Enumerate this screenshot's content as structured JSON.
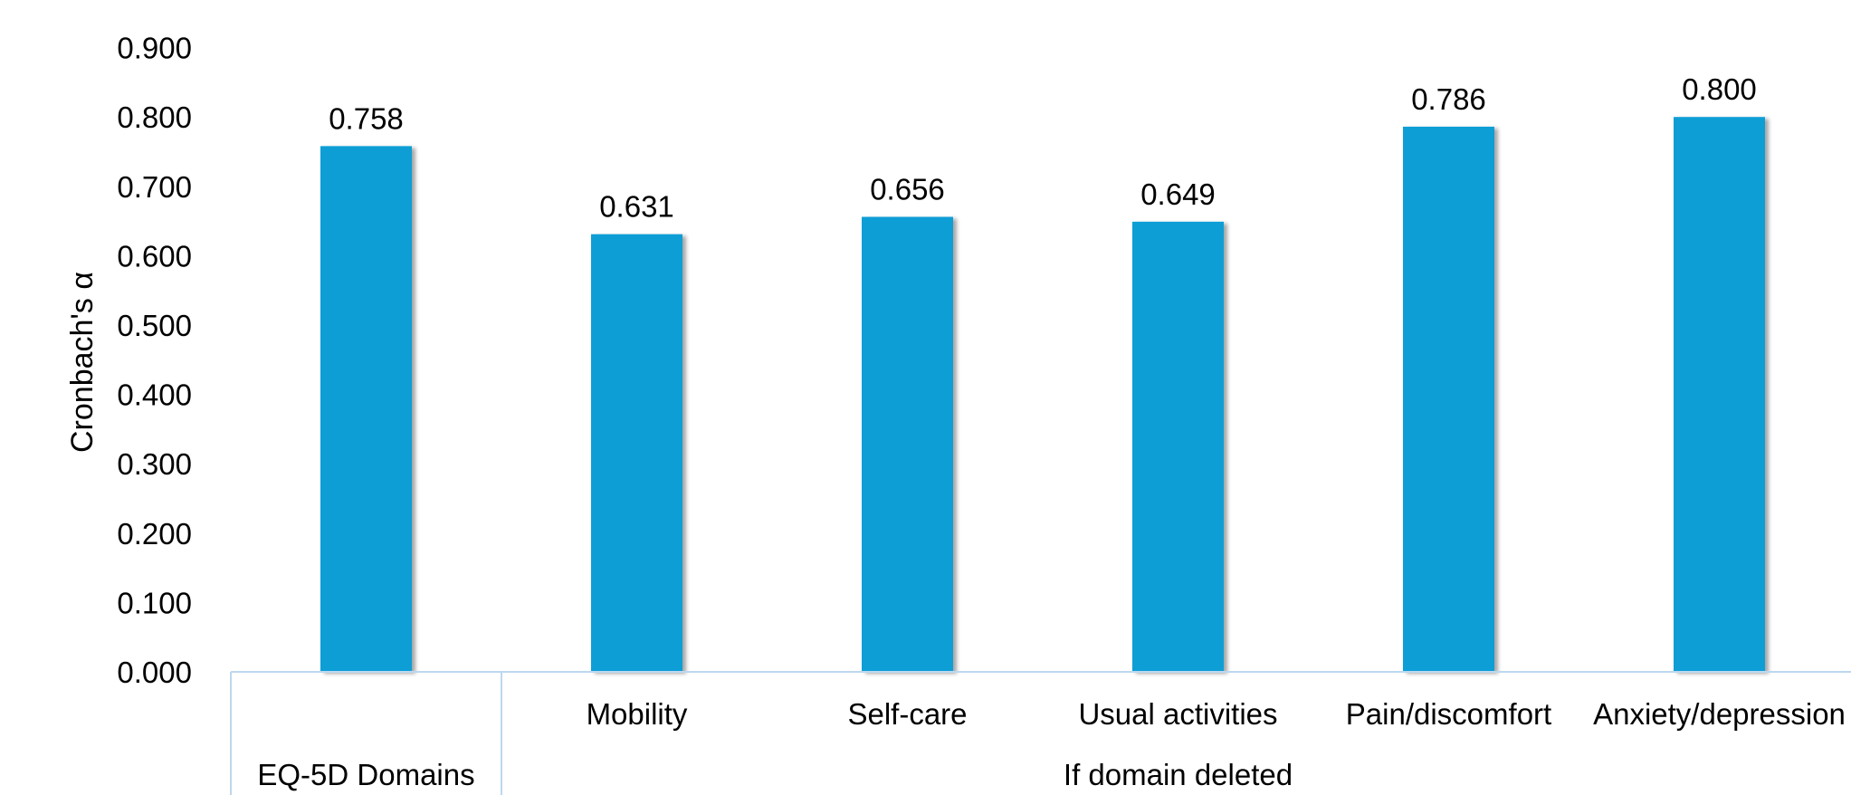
{
  "chart_data": {
    "type": "bar",
    "ylabel": "Cronbach's α",
    "ylim": [
      0,
      0.9
    ],
    "yticks": [
      "0.000",
      "0.100",
      "0.200",
      "0.300",
      "0.400",
      "0.500",
      "0.600",
      "0.700",
      "0.800",
      "0.900"
    ],
    "categories": [
      "",
      "Mobility",
      "Self-care",
      "Usual activities",
      "Pain/discomfort",
      "Anxiety/depression"
    ],
    "groups": [
      {
        "label": "EQ-5D Domains"
      },
      {
        "label": "If domain deleted"
      }
    ],
    "values": [
      0.758,
      0.631,
      0.656,
      0.649,
      0.786,
      0.8
    ],
    "data_labels": [
      "0.758",
      "0.631",
      "0.656",
      "0.649",
      "0.786",
      "0.800"
    ],
    "bar_color": "#119ED6",
    "axis_line_color": "#BDD7EE",
    "grid": false,
    "legend": "none"
  }
}
